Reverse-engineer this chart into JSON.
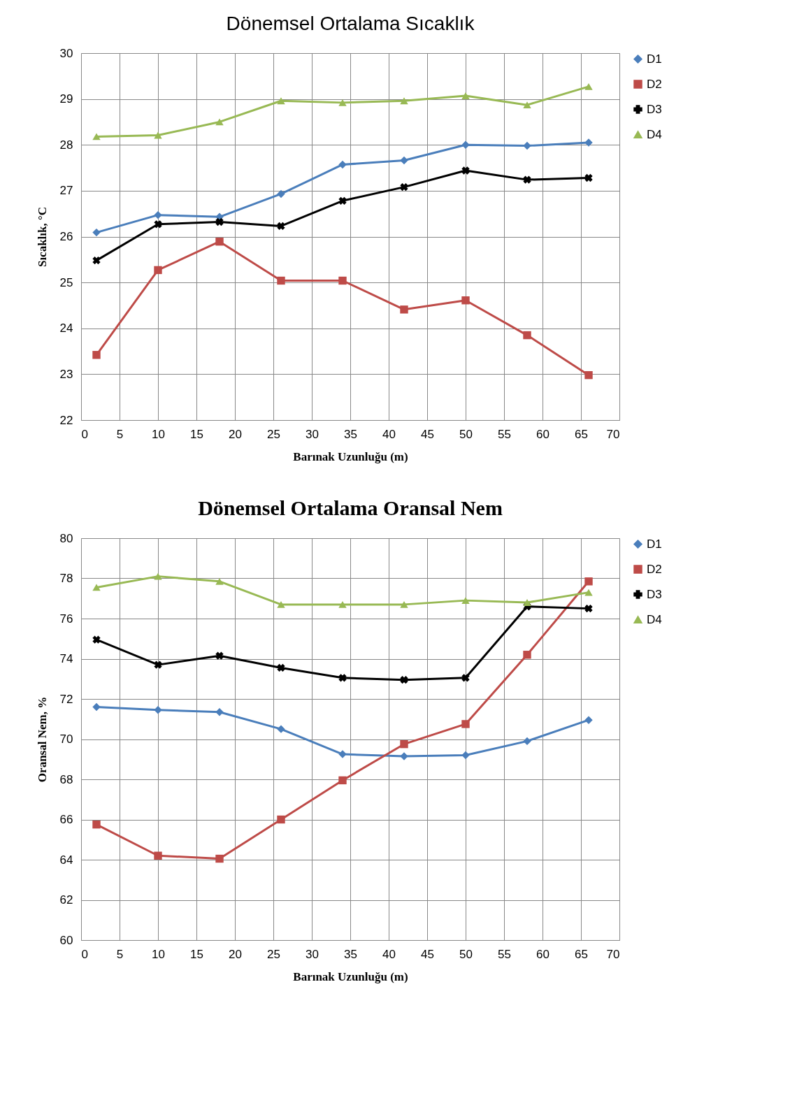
{
  "chart_data": [
    {
      "type": "line",
      "title": "Dönemsel Ortalama Sıcaklık",
      "xlabel": "Barınak Uzunluğu (m)",
      "ylabel": "Sıcaklık, °C",
      "x": [
        2,
        10,
        18,
        26,
        34,
        42,
        50,
        58,
        66
      ],
      "series": [
        {
          "name": "D1",
          "color": "#4a7ebb",
          "marker": "diamond",
          "values": [
            26.09,
            26.47,
            26.43,
            26.93,
            27.57,
            27.66,
            28.0,
            27.98,
            28.05
          ]
        },
        {
          "name": "D2",
          "color": "#be4b48",
          "marker": "square",
          "values": [
            23.42,
            25.27,
            25.89,
            25.04,
            25.04,
            24.41,
            24.61,
            23.85,
            22.98
          ]
        },
        {
          "name": "D3",
          "color": "#000000",
          "marker": "cross",
          "values": [
            25.48,
            26.27,
            26.32,
            26.23,
            26.78,
            27.08,
            27.44,
            27.24,
            27.28
          ]
        },
        {
          "name": "D4",
          "color": "#98b954",
          "marker": "triangle",
          "values": [
            28.18,
            28.21,
            28.5,
            28.96,
            28.92,
            28.96,
            29.07,
            28.87,
            29.27
          ]
        }
      ],
      "xlim": [
        0,
        70
      ],
      "xticks": [
        0,
        5,
        10,
        15,
        20,
        25,
        30,
        35,
        40,
        45,
        50,
        55,
        60,
        65,
        70
      ],
      "ylim": [
        22,
        30
      ],
      "yticks": [
        22,
        23,
        24,
        25,
        26,
        27,
        28,
        29,
        30
      ],
      "grid": true,
      "legend": "right"
    },
    {
      "type": "line",
      "title": "Dönemsel Ortalama Oransal Nem",
      "xlabel": "Barınak Uzunluğu (m)",
      "ylabel": "Oransal Nem, %",
      "x": [
        2,
        10,
        18,
        26,
        34,
        42,
        50,
        58,
        66
      ],
      "series": [
        {
          "name": "D1",
          "color": "#4a7ebb",
          "marker": "diamond",
          "values": [
            71.6,
            71.45,
            71.35,
            70.5,
            69.25,
            69.15,
            69.2,
            69.9,
            70.95
          ]
        },
        {
          "name": "D2",
          "color": "#be4b48",
          "marker": "square",
          "values": [
            65.75,
            64.2,
            64.05,
            66.0,
            67.95,
            69.75,
            70.75,
            74.2,
            77.85
          ]
        },
        {
          "name": "D3",
          "color": "#000000",
          "marker": "cross",
          "values": [
            74.95,
            73.7,
            74.15,
            73.55,
            73.05,
            72.95,
            73.05,
            76.6,
            76.5
          ]
        },
        {
          "name": "D4",
          "color": "#98b954",
          "marker": "triangle",
          "values": [
            77.55,
            78.1,
            77.85,
            76.7,
            76.7,
            76.7,
            76.9,
            76.8,
            77.3
          ]
        }
      ],
      "xlim": [
        0,
        70
      ],
      "xticks": [
        0,
        5,
        10,
        15,
        20,
        25,
        30,
        35,
        40,
        45,
        50,
        55,
        60,
        65,
        70
      ],
      "ylim": [
        60,
        80
      ],
      "yticks": [
        60,
        62,
        64,
        66,
        68,
        70,
        72,
        74,
        76,
        78,
        80
      ],
      "grid": true,
      "legend": "right"
    }
  ]
}
